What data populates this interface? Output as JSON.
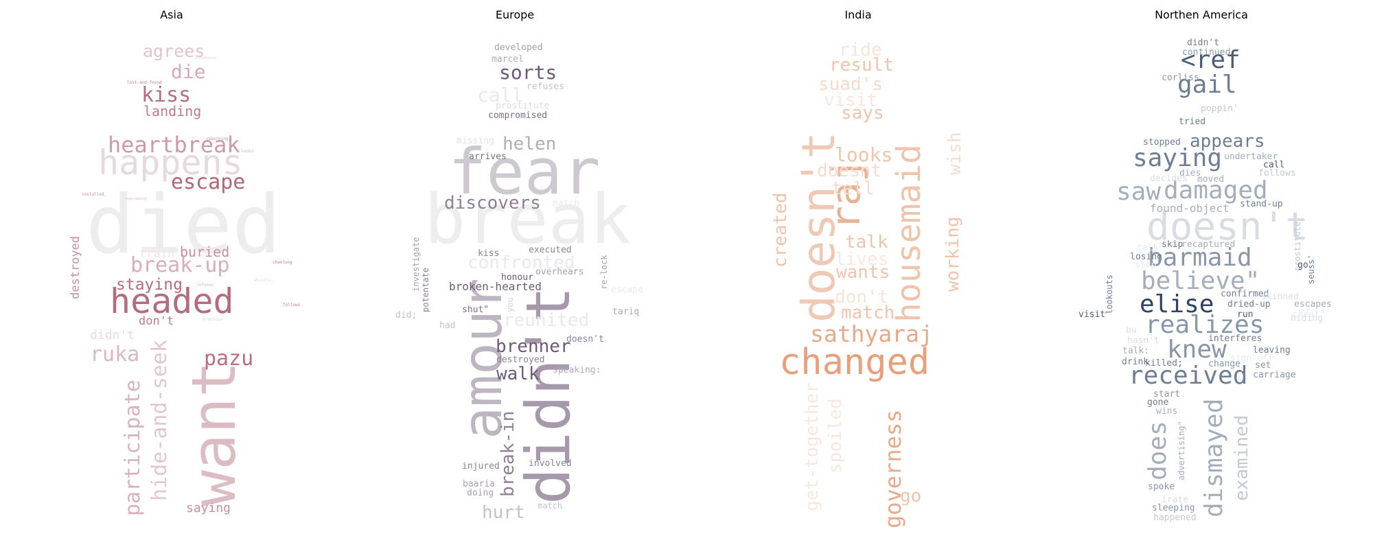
{
  "panels": [
    {
      "title": "Asia",
      "words": [
        "died",
        "want",
        "headed",
        "happens",
        "heartbreak",
        "escape",
        "break-up",
        "participate",
        "hide-and-seek",
        "kiss",
        "agrees",
        "die",
        "landing",
        "buried",
        "staying",
        "ruka",
        "pazu",
        "destroyed",
        "saying",
        "don't",
        "didn't",
        "train",
        "lost-and-found",
        "installed,",
        "overseeing",
        "whistle,",
        "follows",
        "chaolung",
        "refuses",
        "practice",
        "reborning",
        "looks",
        "Bloodhound"
      ]
    },
    {
      "title": "Europe",
      "words": [
        "fear",
        "break",
        "amour",
        "didn't",
        "discovers",
        "helen",
        "sorts",
        "developed",
        "marcel",
        "call",
        "refuses",
        "prostitute",
        "compromised",
        "missing",
        "arrives",
        "confronted",
        "reunited",
        "brenner",
        "walk",
        "break-in",
        "broken-hearted",
        "honour",
        "overhears",
        "executed",
        "kiss",
        "investigate",
        "potentate",
        "shut\"",
        "you",
        "re-lock",
        "escape",
        "tariq",
        "doesn't",
        "speaking:",
        "destroyed",
        "hurt",
        "injured",
        "involved",
        "baaria",
        "doing",
        "match",
        "had",
        "did;",
        "match"
      ]
    },
    {
      "title": "India",
      "words": [
        "doesn't",
        "raj",
        "housemaid",
        "changed",
        "sathyaraj",
        "governess",
        "ride",
        "result",
        "suad's",
        "visit",
        "says",
        "looks",
        "doesnt",
        "tell",
        "wish",
        "talk",
        "lives",
        "wants",
        "don't",
        "match",
        "created",
        "working",
        "get-together",
        "spoiled",
        "go"
      ]
    },
    {
      "title": "Northen America",
      "words": [
        "doesn't",
        "saying",
        "damaged",
        "saw",
        "barmaid",
        "believe\"",
        "elise",
        "realizes",
        "knew",
        "received",
        "dismayed",
        "does",
        "examined",
        "gail",
        "<ref",
        "didn't",
        "continued",
        "corliss",
        "poppin'",
        "tried",
        "stopped",
        "appears",
        "undertaker",
        "call",
        "follows",
        "decides",
        "moved",
        "dies",
        "found-object",
        "stand-up",
        "talk\"",
        "skip",
        "recaptured",
        "losing",
        "stop",
        "prostitute",
        "go",
        "seuss'",
        "lookouts",
        "visit",
        "confirmed",
        "dried-up",
        "skinned",
        "hiding",
        "escapes",
        "cheat\"",
        "run",
        "bu",
        "hasn't",
        "interferes",
        "talk:",
        "leaving",
        "drink",
        "killed;",
        "change",
        "sign-off",
        "set",
        "carriage",
        "start",
        "gone",
        "wins",
        "advertising\"",
        "spoke",
        "irate",
        "sleeping",
        "happened"
      ]
    }
  ],
  "colors": {
    "asia": "#b5657a",
    "europe": "#6e5a78",
    "india": "#e8a27e",
    "north_america": "#3e5070"
  }
}
